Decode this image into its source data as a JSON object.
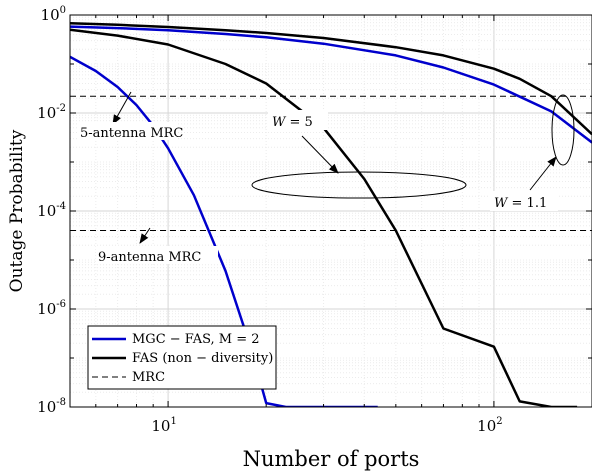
{
  "chart_data": {
    "type": "line",
    "xscale": "log",
    "yscale": "log",
    "xlim": [
      5,
      200
    ],
    "ylim": [
      1e-08,
      1
    ],
    "grid": "on (major and minor)",
    "xlabel": "Number of ports",
    "ylabel": "Outage Probability",
    "x_ticks": [
      {
        "base": "10",
        "exp": "1",
        "value": 10
      },
      {
        "base": "10",
        "exp": "2",
        "value": 100
      }
    ],
    "y_ticks": [
      {
        "base": "10",
        "exp": "0",
        "value": 1
      },
      {
        "base": "10",
        "exp": "-2",
        "value": 0.01
      },
      {
        "base": "10",
        "exp": "-4",
        "value": 0.0001
      },
      {
        "base": "10",
        "exp": "-6",
        "value": 1e-06
      },
      {
        "base": "10",
        "exp": "-8",
        "value": 1e-08
      }
    ],
    "legend_position": "bottom-left",
    "legend": [
      {
        "label": "MGC − FAS, M = 2",
        "color": "#0000cc",
        "style": "solid"
      },
      {
        "label": "FAS (non − diversity)",
        "color": "#000000",
        "style": "solid"
      },
      {
        "label": "MRC",
        "color": "#000000",
        "style": "dashed"
      }
    ],
    "series": [
      {
        "group": "MGC − FAS, M = 2",
        "W": "5",
        "color": "#0000cc",
        "style": "solid",
        "x": [
          5,
          6,
          7,
          8,
          9,
          10,
          12,
          15,
          18,
          20,
          23,
          26,
          30,
          35,
          40,
          44
        ],
        "y": [
          0.14,
          0.072,
          0.034,
          0.0145,
          0.0055,
          0.0019,
          0.00021,
          6e-06,
          1.5e-07,
          1.2e-08,
          1e-08,
          1e-08,
          1e-08,
          1e-08,
          1e-08,
          1e-08
        ]
      },
      {
        "group": "MGC − FAS, M = 2",
        "W": "1.1",
        "color": "#0000cc",
        "style": "solid",
        "x": [
          5,
          7,
          10,
          15,
          20,
          30,
          50,
          70,
          100,
          150,
          200
        ],
        "y": [
          0.58,
          0.54,
          0.49,
          0.41,
          0.35,
          0.26,
          0.15,
          0.085,
          0.038,
          0.0108,
          0.0025
        ]
      },
      {
        "group": "FAS (non − diversity)",
        "W": "1.1",
        "color": "#000000",
        "style": "solid",
        "x": [
          5,
          7,
          10,
          15,
          20,
          30,
          50,
          70,
          100,
          120,
          150,
          200
        ],
        "y": [
          0.68,
          0.63,
          0.57,
          0.49,
          0.43,
          0.34,
          0.22,
          0.15,
          0.08,
          0.05,
          0.022,
          0.0037
        ]
      },
      {
        "group": "FAS (non − diversity)",
        "W": "5",
        "color": "#000000",
        "style": "solid",
        "x": [
          5,
          7,
          10,
          15,
          20,
          30,
          40,
          50,
          70,
          100,
          120,
          150,
          180
        ],
        "y": [
          0.5,
          0.38,
          0.25,
          0.1,
          0.04,
          0.005,
          0.00045,
          4e-05,
          4e-07,
          1.7e-07,
          1.3e-08,
          1e-08,
          1e-08
        ]
      }
    ],
    "reference_lines": [
      {
        "label": "5-antenna MRC",
        "y": 0.022,
        "style": "dashed",
        "color": "#000000"
      },
      {
        "label": "9-antenna MRC",
        "y": 4e-05,
        "style": "dashed",
        "color": "#000000"
      }
    ],
    "annotations": [
      {
        "text": "W = 5",
        "var": "W",
        "val": "5"
      },
      {
        "text": "W = 1.1",
        "var": "W",
        "val": "1.1"
      }
    ]
  }
}
